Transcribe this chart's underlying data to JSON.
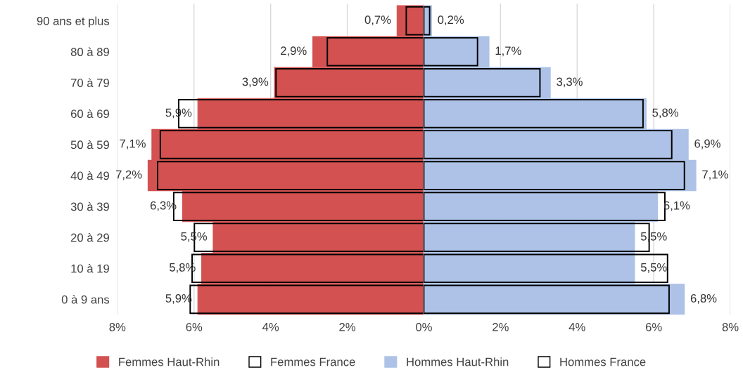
{
  "chart_data": [
    {
      "type": "bar",
      "orientation": "horizontal",
      "categories": [
        "90 ans et plus",
        "80 à 89",
        "70 à 79",
        "60 à 69",
        "50 à 59",
        "40 à 49",
        "30 à 39",
        "20 à 29",
        "10 à 19",
        "0 à 9 ans"
      ],
      "series": [
        {
          "name": "Femmes Haut-Rhin",
          "color": "#d35151",
          "values": [
            0.7,
            2.9,
            3.9,
            5.9,
            7.1,
            7.2,
            6.3,
            5.5,
            5.8,
            5.9
          ],
          "value_labels": [
            "0,7%",
            "2,9%",
            "3,9%",
            "5,9%",
            "7,1%",
            "7,2%",
            "6,3%",
            "5,5%",
            "5,8%",
            "5,9%"
          ]
        },
        {
          "name": "Femmes France",
          "color": "#000000",
          "line_style": "solid",
          "values": [
            0.46,
            2.52,
            3.86,
            6.4,
            6.88,
            6.95,
            6.53,
            5.99,
            6.05,
            6.1
          ]
        }
      ],
      "xlim": [
        8,
        0
      ],
      "xticks": [
        {
          "value": 8,
          "label": "8%"
        },
        {
          "value": 6,
          "label": "6%"
        },
        {
          "value": 4,
          "label": "4%"
        },
        {
          "value": 2,
          "label": "2%"
        },
        {
          "value": 0,
          "label": "0%"
        }
      ],
      "grid": "x",
      "legend": "bottom"
    },
    {
      "type": "bar",
      "orientation": "horizontal",
      "categories": [
        null,
        null,
        null,
        null,
        null,
        null,
        null,
        null,
        null,
        null
      ],
      "series": [
        {
          "name": "Hommes Haut-Rhin",
          "color": "#adc2e6",
          "values": [
            0.2,
            1.7,
            3.3,
            5.8,
            6.9,
            7.1,
            6.1,
            5.5,
            5.5,
            6.8
          ],
          "value_labels": [
            "0,2%",
            "1,7%",
            "3,3%",
            "5,8%",
            "6,9%",
            "7,1%",
            "6,1%",
            "5,5%",
            "5,5%",
            "6,8%"
          ]
        },
        {
          "name": "Hommes France",
          "color": "#000000",
          "line_style": "solid",
          "values": [
            0.15,
            1.4,
            3.03,
            5.72,
            6.47,
            6.8,
            6.29,
            5.88,
            6.36,
            6.4
          ]
        }
      ],
      "xlim": [
        0,
        8
      ],
      "xticks": [
        {
          "value": 2,
          "label": "2%"
        },
        {
          "value": 4,
          "label": "4%"
        },
        {
          "value": 6,
          "label": "6%"
        },
        {
          "value": 8,
          "label": "8%"
        }
      ],
      "grid": "x",
      "legend": "bottom"
    }
  ]
}
